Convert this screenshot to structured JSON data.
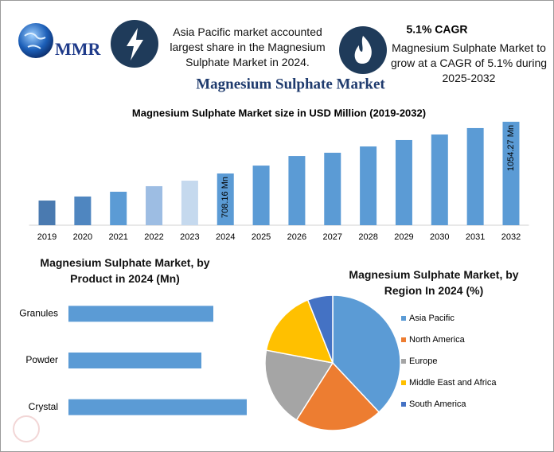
{
  "header": {
    "logo": "MMR",
    "note_left": "Asia Pacific market accounted largest share in the Magnesium Sulphate Market in 2024.",
    "cagr_title": "5.1% CAGR",
    "cagr_text": "Magnesium Sulphate Market to grow at a CAGR of 5.1% during 2025-2032"
  },
  "title": "Magnesium Sulphate Market",
  "chart_data": [
    {
      "type": "bar",
      "title": "Magnesium Sulphate Market size in USD Million (2019-2032)",
      "categories": [
        "2019",
        "2020",
        "2021",
        "2022",
        "2023",
        "2024",
        "2025",
        "2026",
        "2027",
        "2028",
        "2029",
        "2030",
        "2031",
        "2032"
      ],
      "values": [
        527,
        554,
        586,
        623,
        660,
        708.16,
        761,
        825,
        847,
        889,
        932,
        969,
        1012,
        1054.27
      ],
      "value_labels": [
        null,
        null,
        null,
        null,
        null,
        "708.16 Mn",
        null,
        null,
        null,
        null,
        null,
        null,
        null,
        "1054.27 Mn"
      ],
      "colors": [
        "#4a7ab0",
        "#4f86c0",
        "#5b9bd5",
        "#9dbde3",
        "#c5d9ee",
        "#5b9bd5",
        "#5b9bd5",
        "#5b9bd5",
        "#5b9bd5",
        "#5b9bd5",
        "#5b9bd5",
        "#5b9bd5",
        "#5b9bd5",
        "#5b9bd5"
      ],
      "ylim": [
        362,
        1090
      ]
    },
    {
      "type": "bar",
      "orientation": "horizontal",
      "title": "Magnesium Sulphate Market, by Product in 2024 (Mn)",
      "categories": [
        "Granules",
        "Powder",
        "Crystal"
      ],
      "values": [
        182,
        167,
        224
      ],
      "color": "#5b9bd5",
      "xlim": [
        0,
        250
      ]
    },
    {
      "type": "pie",
      "title": "Magnesium Sulphate Market, by Region In 2024 (%)",
      "categories": [
        "Asia Pacific",
        "North America",
        "Europe",
        "Middle East and Africa",
        "South America"
      ],
      "values": [
        38,
        21,
        19,
        16,
        6
      ],
      "colors": [
        "#5b9bd5",
        "#ed7d31",
        "#a5a5a5",
        "#ffc000",
        "#4472c4"
      ],
      "legend": "right"
    }
  ]
}
